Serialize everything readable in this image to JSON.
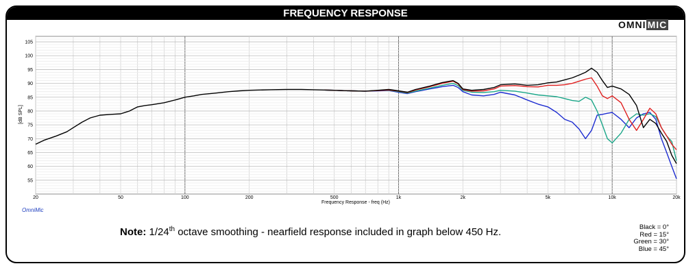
{
  "header": {
    "title": "FREQUENCY RESPONSE"
  },
  "logo": {
    "part1": "OMNI",
    "part2": "MIC"
  },
  "brand_label": "OmniMic",
  "note": {
    "bold": "Note:",
    "pre": " 1/24",
    "sup": "th",
    "post": " octave smoothing - nearfield response included in graph below 450 Hz."
  },
  "legend": [
    "Black = 0°",
    "Red = 15°",
    "Green = 30°",
    "Blue = 45°"
  ],
  "chart_data": {
    "type": "line",
    "title": "FREQUENCY RESPONSE",
    "xlabel": "Frequency Response - freq (Hz)",
    "ylabel": "[dB SPL]",
    "xscale": "log",
    "xlim": [
      20,
      20000
    ],
    "ylim": [
      50,
      107
    ],
    "grid": true,
    "x_ticks": [
      {
        "v": 20,
        "label": "20"
      },
      {
        "v": 50,
        "label": "50"
      },
      {
        "v": 100,
        "label": "100"
      },
      {
        "v": 200,
        "label": "200"
      },
      {
        "v": 500,
        "label": "500"
      },
      {
        "v": 1000,
        "label": "1k"
      },
      {
        "v": 2000,
        "label": "2k"
      },
      {
        "v": 5000,
        "label": "5k"
      },
      {
        "v": 10000,
        "label": "10k"
      },
      {
        "v": 20000,
        "label": "20k"
      }
    ],
    "y_ticks": [
      55,
      60,
      65,
      70,
      75,
      80,
      85,
      90,
      95,
      100,
      105
    ],
    "series": [
      {
        "name": "Black = 0°",
        "color": "#000000",
        "x": [
          20,
          22,
          25,
          28,
          30,
          33,
          36,
          40,
          45,
          50,
          55,
          60,
          65,
          70,
          80,
          90,
          100,
          110,
          120,
          140,
          160,
          180,
          200,
          250,
          300,
          350,
          400,
          450,
          500,
          600,
          700,
          800,
          900,
          1000,
          1100,
          1200,
          1400,
          1600,
          1800,
          1900,
          2000,
          2200,
          2500,
          2800,
          3000,
          3500,
          4000,
          4500,
          5000,
          5500,
          6000,
          6500,
          7000,
          7500,
          8000,
          8500,
          9000,
          9500,
          10000,
          11000,
          12000,
          13000,
          14000,
          15000,
          16000,
          17000,
          18000,
          19000,
          20000
        ],
        "y": [
          68,
          69.5,
          71,
          72.5,
          74,
          76,
          77.5,
          78.5,
          78.8,
          79,
          80,
          81.5,
          82,
          82.3,
          83,
          84,
          85,
          85.5,
          86,
          86.5,
          87,
          87.3,
          87.5,
          87.7,
          87.8,
          87.8,
          87.7,
          87.6,
          87.5,
          87.3,
          87.2,
          87.5,
          87.8,
          87.3,
          86.8,
          87.8,
          89,
          90.3,
          91,
          90,
          88,
          87.5,
          87.8,
          88.5,
          89.5,
          89.8,
          89.3,
          89.5,
          90.2,
          90.5,
          91.3,
          92,
          93,
          94,
          95.5,
          94,
          91,
          88.5,
          89,
          88,
          86,
          82,
          74,
          77,
          75.5,
          72,
          69,
          64,
          61
        ]
      },
      {
        "name": "Red = 15°",
        "color": "#e02020",
        "x": [
          450,
          500,
          600,
          700,
          800,
          900,
          1000,
          1100,
          1200,
          1400,
          1600,
          1800,
          1900,
          2000,
          2200,
          2500,
          2800,
          3000,
          3500,
          4000,
          4500,
          5000,
          5500,
          6000,
          6500,
          7000,
          7500,
          8000,
          8500,
          9000,
          9500,
          10000,
          11000,
          12000,
          13000,
          14000,
          15000,
          16000,
          17000,
          18000,
          19000,
          20000
        ],
        "y": [
          87.6,
          87.5,
          87.3,
          87.2,
          87.4,
          87.6,
          87.2,
          86.7,
          87.6,
          88.8,
          90,
          90.8,
          89.8,
          87.8,
          87.2,
          87.3,
          88,
          89,
          89.2,
          88.8,
          88.7,
          89.3,
          89.3,
          89.5,
          90,
          90.8,
          91.5,
          92,
          89,
          85.5,
          84.5,
          85.5,
          83,
          77,
          73,
          77,
          81,
          79,
          74,
          71,
          68,
          66
        ]
      },
      {
        "name": "Green = 30°",
        "color": "#1aa688",
        "x": [
          450,
          500,
          600,
          700,
          800,
          900,
          1000,
          1100,
          1200,
          1400,
          1600,
          1800,
          1900,
          2000,
          2200,
          2500,
          2800,
          3000,
          3500,
          4000,
          4500,
          5000,
          5500,
          6000,
          6500,
          7000,
          7500,
          8000,
          8500,
          9000,
          9500,
          10000,
          11000,
          12000,
          13000,
          14000,
          15000,
          16000,
          17000,
          18000,
          19000,
          20000
        ],
        "y": [
          87.6,
          87.5,
          87.3,
          87.2,
          87.4,
          87.5,
          87,
          86.5,
          87.2,
          88.3,
          89.3,
          90,
          89.2,
          87.5,
          86.8,
          86.7,
          87,
          87.5,
          87.2,
          86.5,
          85.8,
          85.5,
          85.2,
          84.5,
          83.8,
          83.5,
          85,
          84,
          80,
          75,
          70,
          68.5,
          72,
          77,
          79,
          78.5,
          79,
          78,
          74,
          71,
          69,
          62
        ]
      },
      {
        "name": "Blue = 45°",
        "color": "#1c2bd0",
        "x": [
          450,
          500,
          600,
          700,
          800,
          900,
          1000,
          1100,
          1200,
          1400,
          1600,
          1800,
          1900,
          2000,
          2200,
          2500,
          2800,
          3000,
          3500,
          4000,
          4500,
          5000,
          5500,
          6000,
          6500,
          7000,
          7500,
          8000,
          8500,
          9000,
          9500,
          10000,
          11000,
          12000,
          13000,
          14000,
          15000,
          16000,
          17000,
          18000,
          19000,
          20000
        ],
        "y": [
          87.6,
          87.5,
          87.3,
          87.2,
          87.3,
          87.4,
          86.8,
          86.3,
          87,
          88,
          88.8,
          89.3,
          88.5,
          87,
          85.8,
          85.5,
          86,
          86.8,
          85.8,
          84,
          82.5,
          81.5,
          79.5,
          77,
          76,
          73.5,
          70,
          73,
          78.5,
          78.8,
          79.2,
          79.5,
          77,
          74,
          77.5,
          79,
          79.5,
          77,
          70,
          65,
          60,
          55.5
        ]
      }
    ]
  }
}
